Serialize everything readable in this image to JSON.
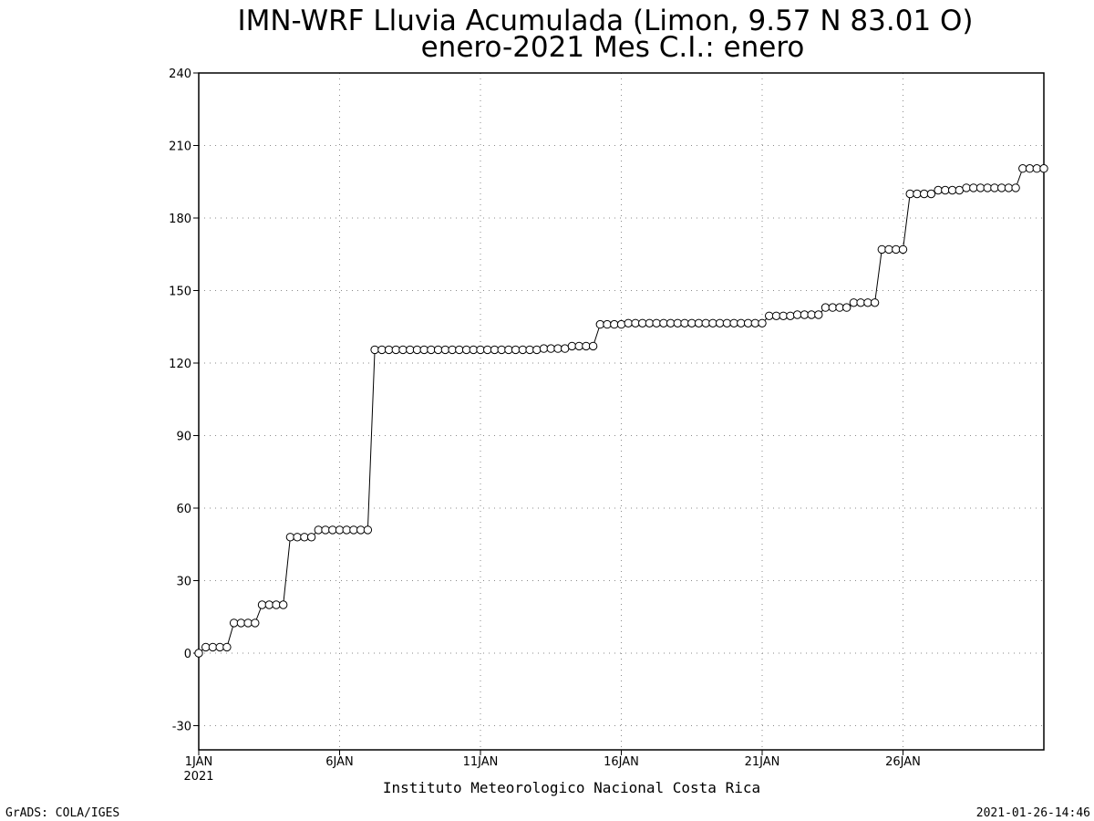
{
  "chart_data": {
    "type": "line",
    "title": "IMN-WRF  Lluvia Acumulada (Limon, 9.57  N 83.01  O)",
    "subtitle": "enero-2021 Mes C.I.: enero",
    "xlabel": "Instituto Meteorologico Nacional Costa Rica",
    "ylabel": "",
    "ylim": [
      -40,
      240
    ],
    "yticks": [
      "-30",
      "0",
      "30",
      "60",
      "90",
      "120",
      "150",
      "180",
      "210",
      "240"
    ],
    "xticks": [
      {
        "day": 1,
        "label": "1JAN",
        "sublabel": "2021"
      },
      {
        "day": 6,
        "label": "6JAN"
      },
      {
        "day": 11,
        "label": "11JAN"
      },
      {
        "day": 16,
        "label": "16JAN"
      },
      {
        "day": 21,
        "label": "21JAN"
      },
      {
        "day": 26,
        "label": "26JAN"
      }
    ],
    "x_range_days": [
      1,
      31
    ],
    "x_step_days": 0.25,
    "grid": true,
    "marker": "open-circle",
    "values": [
      0,
      2.5,
      2.5,
      2.5,
      2.5,
      12.5,
      12.5,
      12.5,
      12.5,
      20,
      20,
      20,
      20,
      48,
      48,
      48,
      48,
      51,
      51,
      51,
      51,
      51,
      51,
      51,
      51,
      125.5,
      125.5,
      125.5,
      125.5,
      125.5,
      125.5,
      125.5,
      125.5,
      125.5,
      125.5,
      125.5,
      125.5,
      125.5,
      125.5,
      125.5,
      125.5,
      125.5,
      125.5,
      125.5,
      125.5,
      125.5,
      125.5,
      125.5,
      125.5,
      126,
      126,
      126,
      126,
      127,
      127,
      127,
      127,
      136,
      136,
      136,
      136,
      136.5,
      136.5,
      136.5,
      136.5,
      136.5,
      136.5,
      136.5,
      136.5,
      136.5,
      136.5,
      136.5,
      136.5,
      136.5,
      136.5,
      136.5,
      136.5,
      136.5,
      136.5,
      136.5,
      136.5,
      139.5,
      139.5,
      139.5,
      139.5,
      140,
      140,
      140,
      140,
      143,
      143,
      143,
      143,
      145,
      145,
      145,
      145,
      167,
      167,
      167,
      167,
      190,
      190,
      190,
      190,
      191.5,
      191.5,
      191.5,
      191.5,
      192.5,
      192.5,
      192.5,
      192.5,
      192.5,
      192.5,
      192.5,
      192.5,
      200.5,
      200.5,
      200.5,
      200.5
    ]
  },
  "footer": {
    "left": "GrADS: COLA/IGES",
    "right": "2021-01-26-14:46"
  }
}
